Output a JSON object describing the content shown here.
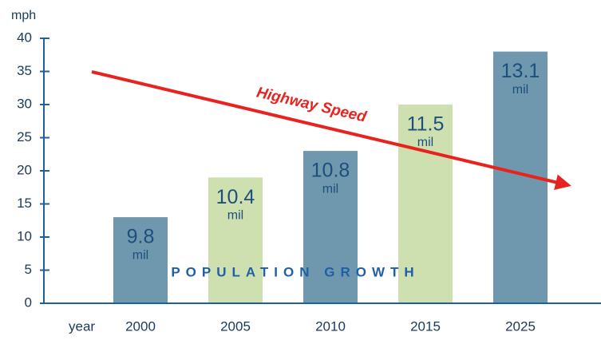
{
  "chart_data": {
    "type": "bar",
    "y_axis_label": "mph",
    "x_axis_label": "year",
    "categories": [
      "2000",
      "2005",
      "2010",
      "2015",
      "2025"
    ],
    "values": [
      13,
      19,
      23,
      30,
      38
    ],
    "colors": [
      "#6f98ae",
      "#cfe0b0",
      "#6f98ae",
      "#cfe0b0",
      "#6f98ae"
    ],
    "population_labels": [
      "9.8",
      "10.4",
      "10.8",
      "11.5",
      "13.1"
    ],
    "population_unit": "mil",
    "bar_caption": "POPULATION GROWTH",
    "annotation": "Highway Speed",
    "ylim": [
      0,
      40
    ],
    "yticks": [
      0,
      5,
      10,
      15,
      20,
      25,
      30,
      35,
      40
    ]
  }
}
